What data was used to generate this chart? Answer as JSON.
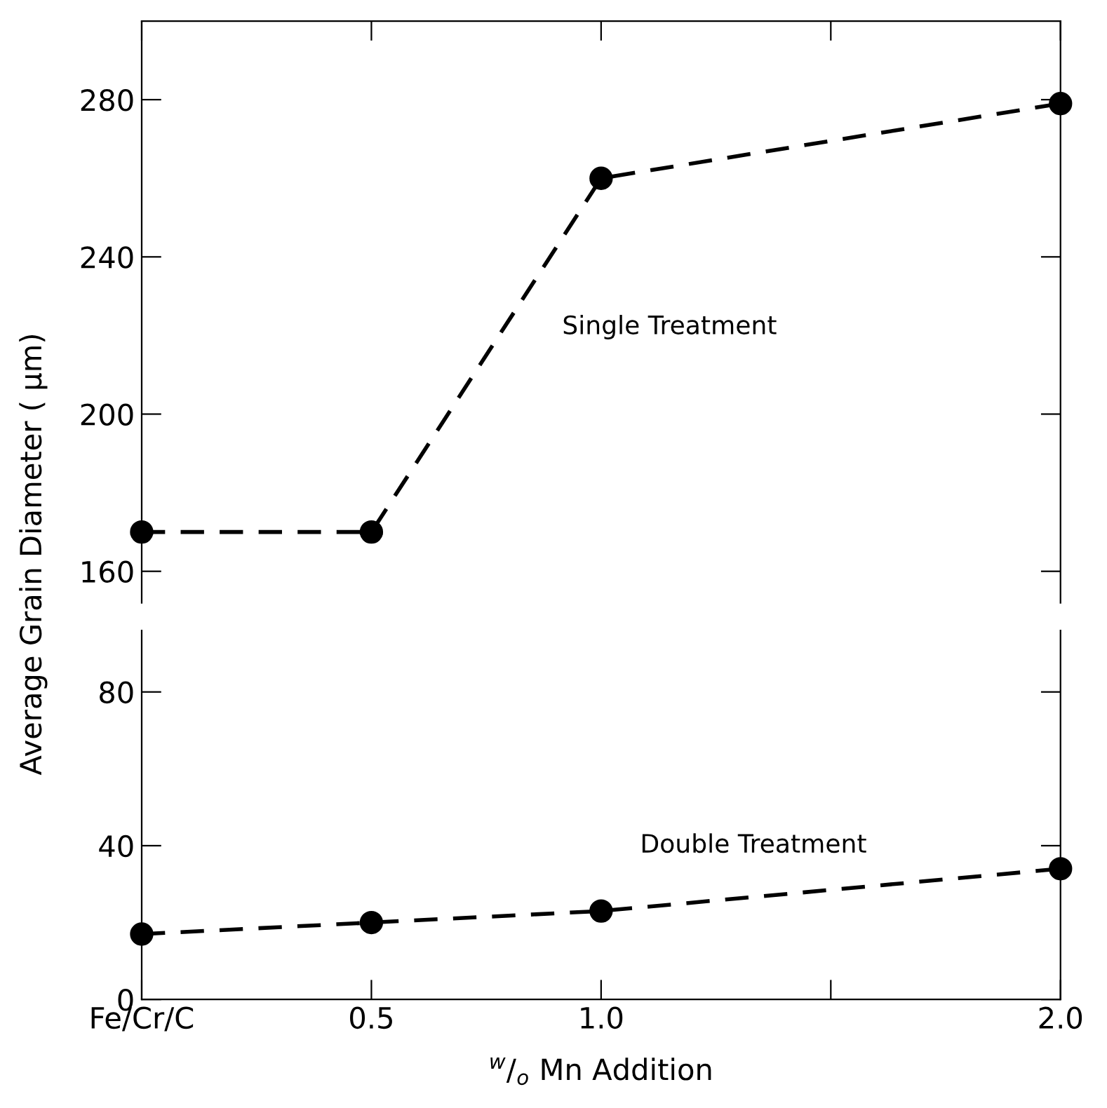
{
  "chart_data": [
    {
      "type": "line",
      "ylabel": "Average Grain Diameter ( μm)",
      "x": [
        0,
        0.5,
        1.0,
        2.0
      ],
      "series": [
        {
          "name": "Single Treatment",
          "color": "#000000",
          "values": [
            170,
            170,
            260,
            279
          ]
        }
      ],
      "xlim": [
        0,
        2.0
      ],
      "xticks": [
        {
          "value": 0,
          "label": null
        },
        {
          "value": 0.5,
          "label": null
        },
        {
          "value": 1.0,
          "label": null
        },
        {
          "value": 1.5,
          "label": null
        },
        {
          "value": 2.0,
          "label": null
        }
      ],
      "ylim": [
        152,
        300
      ],
      "yticks": [
        160,
        200,
        240,
        280
      ],
      "tick_labels": "y",
      "marker": "circle",
      "line_style": "dashed",
      "grid": false,
      "legend": false
    },
    {
      "type": "line",
      "xlabel": "$^{w}$/$_{o}$ Mn Addition",
      "x": [
        0,
        0.5,
        1.0,
        2.0
      ],
      "series": [
        {
          "name": "Double Treatment",
          "color": "#000000",
          "values": [
            17,
            20,
            23,
            34
          ]
        }
      ],
      "xlim": [
        0,
        2.0
      ],
      "xticks": [
        {
          "value": 0,
          "label": "Fe/Cr/C"
        },
        0.5,
        {
          "value": 1.0,
          "label": "1.0"
        },
        {
          "value": 1.5,
          "label": null
        },
        {
          "value": 2.0,
          "label": "2.0"
        }
      ],
      "ylim": [
        0,
        96
      ],
      "yticks": [
        0,
        40,
        80
      ],
      "marker": "circle",
      "line_style": "dashed",
      "grid": false,
      "legend": false
    }
  ]
}
